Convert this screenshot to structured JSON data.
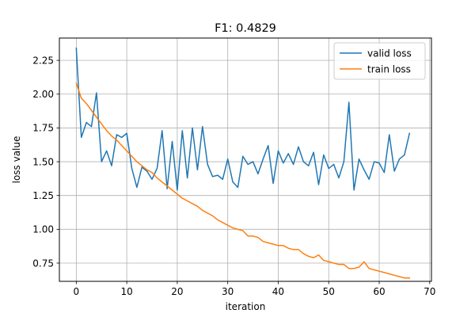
{
  "chart_data": {
    "type": "line",
    "title": "F1: 0.4829",
    "xlabel": "iteration",
    "ylabel": "loss value",
    "xlim": [
      -3.35,
      70.35
    ],
    "ylim": [
      0.615,
      2.415
    ],
    "xticks": [
      0,
      10,
      20,
      30,
      40,
      50,
      60,
      70
    ],
    "yticks": [
      0.75,
      1.0,
      1.25,
      1.5,
      1.75,
      2.0,
      2.25
    ],
    "ytick_labels": [
      "0.75",
      "1.00",
      "1.25",
      "1.50",
      "1.75",
      "2.00",
      "2.25"
    ],
    "grid": true,
    "legend_position": "upper right",
    "series": [
      {
        "name": "valid loss",
        "color": "#1f77b4",
        "values": [
          2.34,
          1.68,
          1.79,
          1.76,
          2.01,
          1.5,
          1.58,
          1.47,
          1.7,
          1.68,
          1.71,
          1.45,
          1.31,
          1.46,
          1.43,
          1.37,
          1.45,
          1.73,
          1.3,
          1.65,
          1.29,
          1.73,
          1.38,
          1.75,
          1.44,
          1.76,
          1.48,
          1.39,
          1.4,
          1.37,
          1.52,
          1.35,
          1.31,
          1.54,
          1.48,
          1.5,
          1.41,
          1.52,
          1.62,
          1.34,
          1.58,
          1.49,
          1.56,
          1.48,
          1.61,
          1.5,
          1.47,
          1.57,
          1.33,
          1.55,
          1.45,
          1.48,
          1.38,
          1.5,
          1.94,
          1.29,
          1.52,
          1.44,
          1.37,
          1.5,
          1.49,
          1.42,
          1.7,
          1.43,
          1.52,
          1.55,
          1.71
        ]
      },
      {
        "name": "train loss",
        "color": "#ff7f0e",
        "values": [
          2.08,
          1.97,
          1.93,
          1.88,
          1.83,
          1.78,
          1.73,
          1.69,
          1.66,
          1.62,
          1.58,
          1.54,
          1.5,
          1.47,
          1.44,
          1.42,
          1.38,
          1.35,
          1.32,
          1.29,
          1.26,
          1.23,
          1.21,
          1.19,
          1.17,
          1.14,
          1.12,
          1.1,
          1.07,
          1.05,
          1.03,
          1.01,
          1.0,
          0.99,
          0.95,
          0.95,
          0.94,
          0.91,
          0.9,
          0.89,
          0.88,
          0.88,
          0.86,
          0.85,
          0.85,
          0.82,
          0.8,
          0.79,
          0.81,
          0.77,
          0.76,
          0.75,
          0.74,
          0.74,
          0.71,
          0.71,
          0.72,
          0.76,
          0.71,
          0.7,
          0.69,
          0.68,
          0.67,
          0.66,
          0.65,
          0.64,
          0.64
        ]
      }
    ]
  }
}
